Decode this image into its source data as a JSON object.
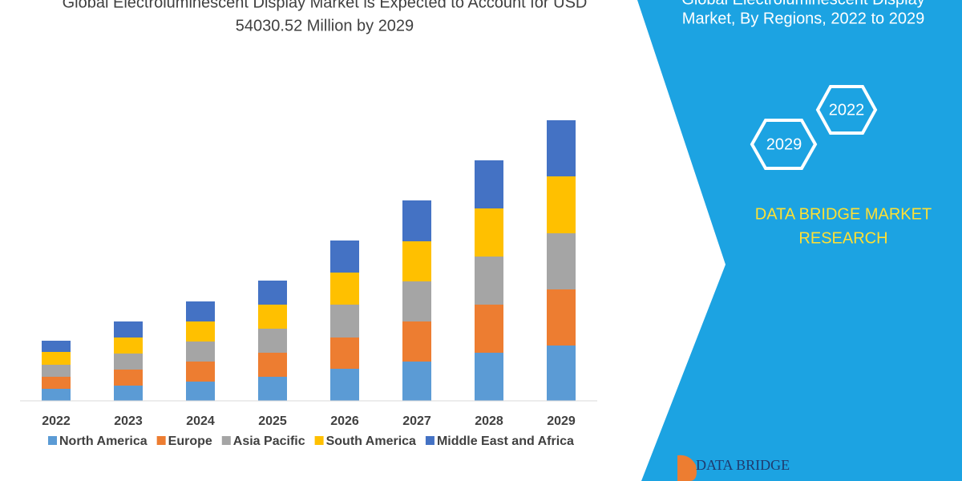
{
  "chart_data": {
    "type": "stacked-bar",
    "title_lines": [
      "Global Electroluminescent Display Market is Expected to Account for USD",
      "54030.52 Million by 2029"
    ],
    "categories": [
      "2022",
      "2023",
      "2024",
      "2025",
      "2026",
      "2027",
      "2028",
      "2029"
    ],
    "series": [
      {
        "name": "North America",
        "color": "#5b9bd5",
        "values": [
          15,
          19,
          24,
          30,
          40,
          49,
          60,
          69
        ]
      },
      {
        "name": "Europe",
        "color": "#ed7d31",
        "values": [
          15,
          20,
          25,
          30,
          39,
          50,
          60,
          70
        ]
      },
      {
        "name": "Asia Pacific",
        "color": "#a5a5a5",
        "values": [
          15,
          20,
          25,
          30,
          41,
          50,
          60,
          70
        ]
      },
      {
        "name": "South America",
        "color": "#ffc000",
        "values": [
          16,
          20,
          25,
          30,
          40,
          50,
          60,
          71
        ]
      },
      {
        "name": "Middle East and Africa",
        "color": "#4472c4",
        "values": [
          14,
          20,
          25,
          30,
          40,
          51,
          60,
          70
        ]
      }
    ]
  },
  "side_panel": {
    "heading_lines": [
      "Global Electroluminescent Display",
      "Market, By Regions, 2022 to 2029"
    ],
    "badges": [
      "2022",
      "2029"
    ],
    "brand_lines": [
      "DATA BRIDGE MARKET",
      "RESEARCH"
    ],
    "logo_text": "DATA BRIDGE"
  }
}
